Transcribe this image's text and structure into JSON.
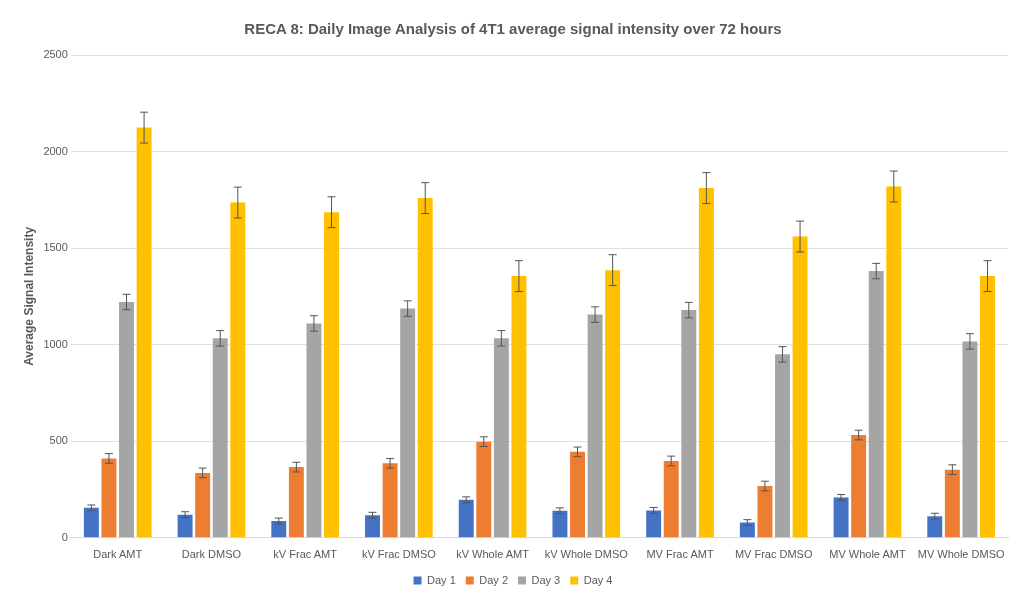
{
  "chart_data": {
    "type": "bar",
    "title": "RECA 8: Daily Image Analysis of 4T1 average signal intensity over 72 hours",
    "ylabel": "Average Signal Intensity",
    "categories": [
      "Dark AMT",
      "Dark DMSO",
      "kV Frac AMT",
      "kV Frac DMSO",
      "kV Whole AMT",
      "kV Whole DMSO",
      "MV Frac AMT",
      "MV Frac DMSO",
      "MV Whole AMT",
      "MV Whole DMSO"
    ],
    "series": [
      {
        "name": "Day 1",
        "color": "#4472c4",
        "values": [
          155,
          120,
          87,
          117,
          197,
          140,
          142,
          79,
          209,
          112
        ],
        "errors": [
          15,
          15,
          15,
          15,
          15,
          15,
          15,
          15,
          15,
          15
        ]
      },
      {
        "name": "Day 2",
        "color": "#ed7d31",
        "values": [
          411,
          336,
          366,
          386,
          498,
          445,
          398,
          268,
          532,
          353
        ],
        "errors": [
          25,
          25,
          25,
          25,
          25,
          25,
          25,
          25,
          25,
          25
        ]
      },
      {
        "name": "Day 3",
        "color": "#a5a5a5",
        "values": [
          1221,
          1033,
          1110,
          1187,
          1033,
          1156,
          1179,
          950,
          1381,
          1017
        ],
        "errors": [
          40,
          40,
          40,
          40,
          40,
          40,
          40,
          40,
          40,
          40
        ]
      },
      {
        "name": "Day 4",
        "color": "#ffc000",
        "values": [
          2124,
          1736,
          1686,
          1759,
          1355,
          1386,
          1811,
          1560,
          1819,
          1355
        ],
        "errors": [
          80,
          80,
          80,
          80,
          80,
          80,
          80,
          80,
          80,
          80
        ]
      }
    ],
    "ylim": [
      0,
      2500
    ],
    "yticks": [
      0,
      500,
      1000,
      1500,
      2000,
      2500
    ],
    "grid": "y",
    "legend": "bottom"
  }
}
